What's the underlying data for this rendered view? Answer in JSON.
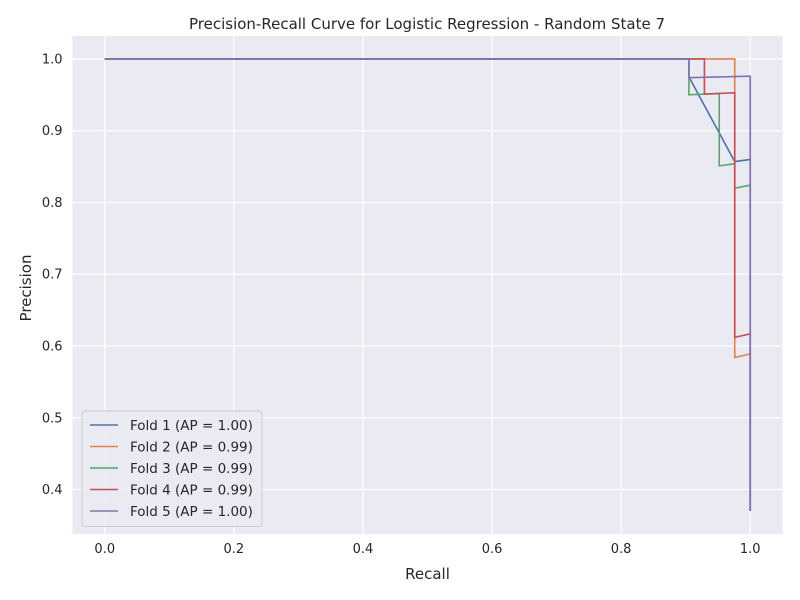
{
  "chart_data": {
    "type": "line",
    "title": "Precision-Recall Curve for Logistic Regression - Random State 7",
    "xlabel": "Recall",
    "ylabel": "Precision",
    "xlim": [
      -0.05,
      1.05
    ],
    "ylim": [
      0.338,
      1.032
    ],
    "xticks": [
      0.0,
      0.2,
      0.4,
      0.6,
      0.8,
      1.0
    ],
    "yticks": [
      0.4,
      0.5,
      0.6,
      0.7,
      0.8,
      0.9,
      1.0
    ],
    "xtick_labels": [
      "0.0",
      "0.2",
      "0.4",
      "0.6",
      "0.8",
      "1.0"
    ],
    "ytick_labels": [
      "0.4",
      "0.5",
      "0.6",
      "0.7",
      "0.8",
      "0.9",
      "1.0"
    ],
    "grid": true,
    "legend_position": "lower-left",
    "background_color": "#eaeaf2",
    "step": "post",
    "series": [
      {
        "name": "Fold 1 (AP = 1.00)",
        "color": "#4c72b0",
        "x": [
          0.0,
          0.905,
          0.905,
          0.976,
          1.0,
          1.0
        ],
        "y": [
          1.0,
          1.0,
          0.975,
          0.857,
          0.86,
          0.37
        ]
      },
      {
        "name": "Fold 2 (AP = 0.99)",
        "color": "#dd8452",
        "x": [
          0.0,
          0.976,
          0.976,
          1.0,
          1.0
        ],
        "y": [
          1.0,
          1.0,
          0.584,
          0.589,
          0.37
        ]
      },
      {
        "name": "Fold 3 (AP = 0.99)",
        "color": "#55a868",
        "x": [
          0.0,
          0.905,
          0.905,
          0.952,
          0.952,
          0.976,
          0.976,
          1.0,
          1.0
        ],
        "y": [
          1.0,
          1.0,
          0.95,
          0.952,
          0.851,
          0.854,
          0.82,
          0.824,
          0.37
        ]
      },
      {
        "name": "Fold 4 (AP = 0.99)",
        "color": "#c44e52",
        "x": [
          0.0,
          0.929,
          0.929,
          0.976,
          0.976,
          1.0,
          1.0
        ],
        "y": [
          1.0,
          1.0,
          0.951,
          0.953,
          0.612,
          0.617,
          0.37
        ]
      },
      {
        "name": "Fold 5 (AP = 1.00)",
        "color": "#8172b3",
        "x": [
          0.0,
          0.905,
          0.905,
          1.0,
          1.0
        ],
        "y": [
          1.0,
          1.0,
          0.974,
          0.976,
          0.37
        ]
      }
    ]
  }
}
